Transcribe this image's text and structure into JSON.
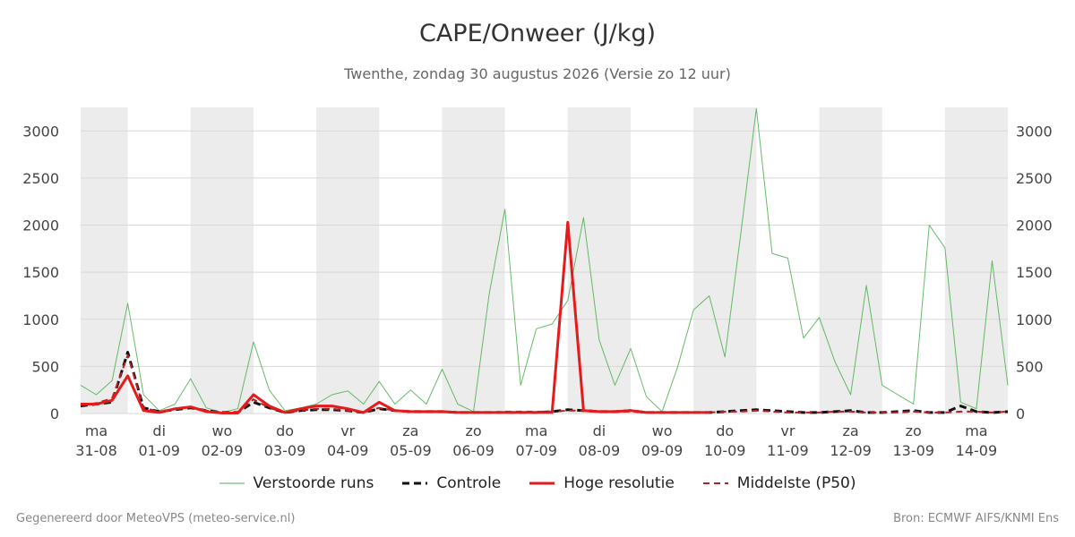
{
  "title": "CAPE/Onweer (J/kg)",
  "subtitle": "Twenthe, zondag 30 augustus 2026 (Versie zo 12 uur)",
  "footer": {
    "left": "Gegenereerd door MeteoVPS (meteo-service.nl)",
    "right": "Bron: ECMWF AIFS/KNMI Ens"
  },
  "legend": [
    {
      "label": "Verstoorde runs",
      "color": "#4caf50",
      "style": "thin"
    },
    {
      "label": "Controle",
      "color": "#111111",
      "style": "dashed"
    },
    {
      "label": "Hoge resolutie",
      "color": "#e41a1c",
      "style": "solid"
    },
    {
      "label": "Middelste (P50)",
      "color": "#b22222",
      "style": "dashed"
    }
  ],
  "chart_data": {
    "type": "line",
    "x_unit": "day index (0 = ma 31-08 00:00)",
    "xlim": [
      -0.25,
      14.5
    ],
    "ylim": [
      0,
      3250
    ],
    "yticks": [
      0,
      500,
      1000,
      1500,
      2000,
      2500,
      3000
    ],
    "days": [
      {
        "day": "ma",
        "date": "31-08"
      },
      {
        "day": "di",
        "date": "01-09"
      },
      {
        "day": "wo",
        "date": "02-09"
      },
      {
        "day": "do",
        "date": "03-09"
      },
      {
        "day": "vr",
        "date": "04-09"
      },
      {
        "day": "za",
        "date": "05-09"
      },
      {
        "day": "zo",
        "date": "06-09"
      },
      {
        "day": "ma",
        "date": "07-09"
      },
      {
        "day": "di",
        "date": "08-09"
      },
      {
        "day": "wo",
        "date": "09-09"
      },
      {
        "day": "do",
        "date": "10-09"
      },
      {
        "day": "vr",
        "date": "11-09"
      },
      {
        "day": "za",
        "date": "12-09"
      },
      {
        "day": "zo",
        "date": "13-09"
      },
      {
        "day": "ma",
        "date": "14-09"
      }
    ],
    "shaded_days": [
      0,
      2,
      4,
      6,
      8,
      10,
      12,
      14
    ],
    "series": [
      {
        "name": "Hoge resolutie",
        "color": "#e41a1c",
        "x": [
          -0.25,
          0.0,
          0.25,
          0.5,
          0.75,
          1.0,
          1.25,
          1.5,
          1.75,
          2.0,
          2.25,
          2.5,
          2.75,
          3.0,
          3.25,
          3.5,
          3.75,
          4.0,
          4.25,
          4.5,
          4.75,
          5.0,
          5.25,
          5.5,
          5.75,
          6.0,
          6.25,
          6.5,
          6.75,
          7.0,
          7.25,
          7.5,
          7.75,
          8.0,
          8.25,
          8.5,
          8.75,
          9.0,
          9.25,
          9.5,
          9.75
        ],
        "y": [
          100,
          100,
          140,
          400,
          30,
          10,
          50,
          70,
          20,
          5,
          5,
          200,
          80,
          10,
          50,
          80,
          80,
          50,
          10,
          120,
          30,
          20,
          20,
          20,
          10,
          10,
          10,
          10,
          10,
          10,
          10,
          2030,
          30,
          20,
          20,
          30,
          10,
          10,
          10,
          10,
          10
        ]
      },
      {
        "name": "Controle",
        "color": "#111111",
        "x": [
          -0.25,
          0.0,
          0.25,
          0.5,
          0.75,
          1.0,
          1.25,
          1.5,
          1.75,
          2.0,
          2.25,
          2.5,
          2.75,
          3.0,
          3.25,
          3.5,
          3.75,
          4.0,
          4.25,
          4.5,
          4.75,
          5.0,
          5.25,
          5.5,
          5.75,
          6.0,
          6.25,
          6.5,
          6.75,
          7.0,
          7.25,
          7.5,
          7.75,
          8.0,
          8.25,
          8.5,
          8.75,
          9.0,
          9.25,
          9.5,
          9.75,
          10.0,
          10.25,
          10.5,
          10.75,
          11.0,
          11.25,
          11.5,
          11.75,
          12.0,
          12.25,
          12.5,
          12.75,
          13.0,
          13.25,
          13.5,
          13.75,
          14.0,
          14.25,
          14.5
        ],
        "y": [
          80,
          100,
          120,
          650,
          60,
          20,
          40,
          60,
          30,
          10,
          10,
          120,
          60,
          10,
          30,
          40,
          40,
          30,
          10,
          50,
          30,
          20,
          20,
          20,
          10,
          10,
          10,
          10,
          10,
          10,
          20,
          40,
          30,
          20,
          20,
          30,
          10,
          10,
          10,
          10,
          10,
          20,
          30,
          40,
          30,
          20,
          10,
          10,
          20,
          30,
          10,
          10,
          20,
          30,
          10,
          10,
          80,
          20,
          10,
          20
        ]
      },
      {
        "name": "Middelste (P50)",
        "color": "#b22222",
        "x": [
          -0.25,
          0.0,
          0.25,
          0.5,
          0.75,
          1.0,
          1.25,
          1.5,
          1.75,
          2.0,
          2.25,
          2.5,
          2.75,
          3.0,
          3.25,
          3.5,
          3.75,
          4.0,
          4.25,
          4.5,
          4.75,
          5.0,
          5.25,
          5.5,
          5.75,
          6.0,
          6.25,
          6.5,
          6.75,
          7.0,
          7.25,
          7.5,
          7.75,
          8.0,
          8.25,
          8.5,
          8.75,
          9.0,
          9.25,
          9.5,
          9.75,
          10.0,
          10.25,
          10.5,
          10.75,
          11.0,
          11.25,
          11.5,
          11.75,
          12.0,
          12.25,
          12.5,
          12.75,
          13.0,
          13.25,
          13.5,
          13.75,
          14.0,
          14.25,
          14.5
        ],
        "y": [
          90,
          110,
          160,
          620,
          60,
          20,
          50,
          70,
          30,
          10,
          10,
          150,
          60,
          10,
          30,
          50,
          50,
          30,
          10,
          60,
          30,
          20,
          20,
          20,
          10,
          10,
          10,
          20,
          20,
          20,
          20,
          30,
          30,
          20,
          20,
          20,
          10,
          10,
          10,
          10,
          10,
          20,
          20,
          30,
          20,
          10,
          10,
          10,
          20,
          20,
          10,
          10,
          10,
          20,
          10,
          10,
          20,
          20,
          10,
          20
        ]
      },
      {
        "name": "Verstoorde runs",
        "color": "#4caf50",
        "x": [
          -0.25,
          0.0,
          0.25,
          0.5,
          0.75,
          1.0,
          1.25,
          1.5,
          1.75,
          2.0,
          2.25,
          2.5,
          2.75,
          3.0,
          3.25,
          3.5,
          3.75,
          4.0,
          4.25,
          4.5,
          4.75,
          5.0,
          5.25,
          5.5,
          5.75,
          6.0,
          6.25,
          6.5,
          6.75,
          7.0,
          7.25,
          7.5,
          7.75,
          8.0,
          8.25,
          8.5,
          8.75,
          9.0,
          9.25,
          9.5,
          9.75,
          10.0,
          10.25,
          10.5,
          10.75,
          11.0,
          11.25,
          11.5,
          11.75,
          12.0,
          12.25,
          12.5,
          12.75,
          13.0,
          13.25,
          13.5,
          13.75,
          14.0,
          14.25,
          14.5
        ],
        "y": [
          300,
          200,
          350,
          1170,
          200,
          30,
          100,
          370,
          60,
          10,
          50,
          760,
          250,
          30,
          60,
          100,
          200,
          240,
          100,
          340,
          100,
          250,
          100,
          470,
          100,
          20,
          1270,
          2170,
          300,
          900,
          950,
          1200,
          2080,
          780,
          300,
          690,
          180,
          20,
          500,
          1100,
          1250,
          600,
          1900,
          3240,
          1700,
          1650,
          800,
          1020,
          550,
          200,
          1360,
          300,
          200,
          100,
          2000,
          1760,
          120,
          50,
          1620,
          300
        ]
      }
    ]
  }
}
